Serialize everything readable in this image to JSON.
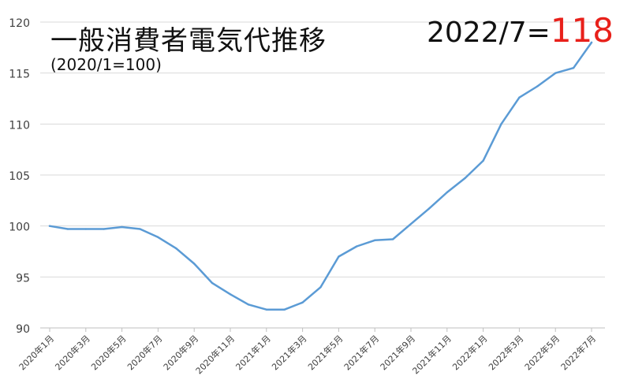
{
  "chart_data": {
    "type": "line",
    "title": "一般消費者電気代推移",
    "subtitle": "(2020/1=100)",
    "annotation": {
      "prefix": "2022/7=",
      "value": "118",
      "highlight_color": "#e8201a"
    },
    "x": [
      "2020年1月",
      "2020年2月",
      "2020年3月",
      "2020年4月",
      "2020年5月",
      "2020年6月",
      "2020年7月",
      "2020年8月",
      "2020年9月",
      "2020年10月",
      "2020年11月",
      "2020年12月",
      "2021年1月",
      "2021年2月",
      "2021年3月",
      "2021年4月",
      "2021年5月",
      "2021年6月",
      "2021年7月",
      "2021年8月",
      "2021年9月",
      "2021年10月",
      "2021年11月",
      "2021年12月",
      "2022年1月",
      "2022年2月",
      "2022年3月",
      "2022年4月",
      "2022年5月",
      "2022年6月",
      "2022年7月"
    ],
    "x_tick_labels": [
      "2020年1月",
      "2020年3月",
      "2020年5月",
      "2020年7月",
      "2020年9月",
      "2020年11月",
      "2021年1月",
      "2021年3月",
      "2021年5月",
      "2021年7月",
      "2021年9月",
      "2021年11月",
      "2022年1月",
      "2022年3月",
      "2022年5月",
      "2022年7月"
    ],
    "series": [
      {
        "values": [
          100.0,
          99.7,
          99.7,
          99.7,
          99.9,
          99.7,
          98.9,
          97.8,
          96.3,
          94.4,
          93.3,
          92.3,
          91.8,
          91.8,
          92.5,
          94.0,
          97.0,
          98.0,
          98.6,
          98.7,
          100.2,
          101.7,
          103.3,
          104.7,
          106.4,
          110.0,
          112.6,
          113.7,
          115.0,
          115.5,
          118.0
        ],
        "color": "#5b9bd5"
      }
    ],
    "ylim": [
      90,
      120
    ],
    "y_ticks": [
      90,
      95,
      100,
      105,
      110,
      115,
      120
    ],
    "grid": true,
    "legend": "none"
  }
}
